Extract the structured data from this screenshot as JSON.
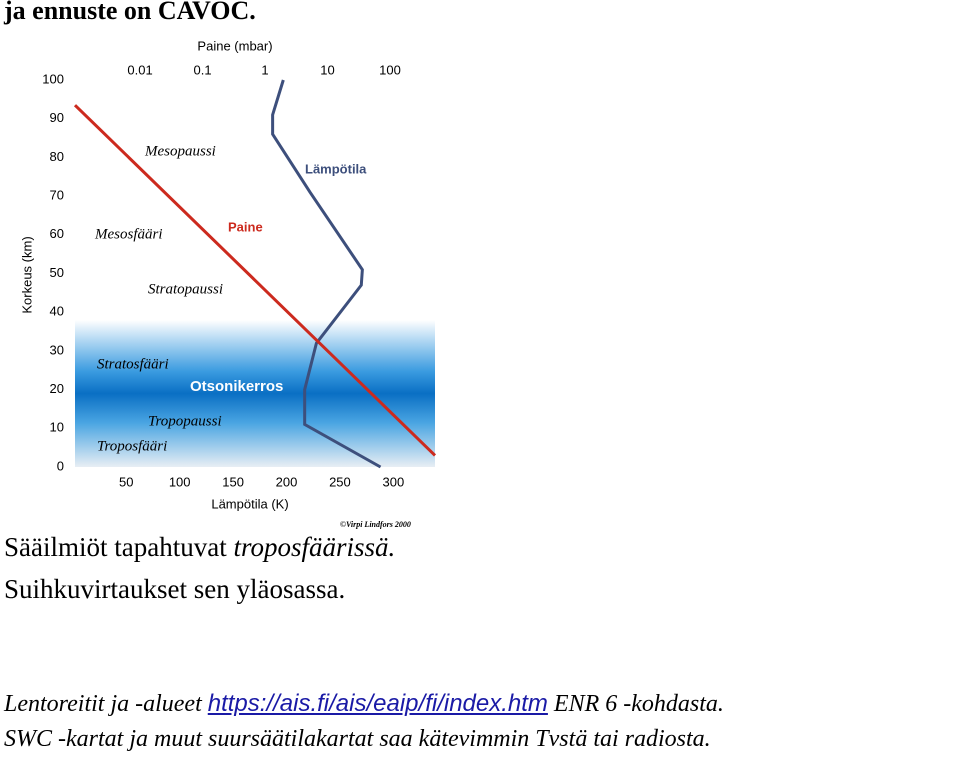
{
  "heading": "ja ennuste on CAVOC.",
  "chart_data": {
    "type": "line",
    "title": "Paine (mbar)",
    "x_label": "Lämpötila (K)",
    "y_label": "Korkeus (km)",
    "xlim": [
      2,
      339
    ],
    "xticks": [
      50,
      100,
      150,
      200,
      250,
      300
    ],
    "x2lim": [
      0.00091,
      525
    ],
    "x2ticks": [
      0.01,
      0.1,
      1,
      10,
      100
    ],
    "x2scale": "log",
    "ylim": [
      0,
      100
    ],
    "yticks": [
      0,
      10,
      20,
      30,
      40,
      50,
      60,
      70,
      80,
      90,
      100
    ],
    "series": [
      {
        "name": "Lämpötila",
        "color": "#3d4f7c",
        "x": [
          288,
          217,
          217,
          228,
          270,
          271,
          222,
          187,
          187,
          197
        ],
        "values": [
          0,
          11,
          20,
          32,
          47,
          51,
          71,
          86,
          91,
          100
        ]
      },
      {
        "name": "Paine",
        "color": "#cc2a1e",
        "axis": "x2",
        "x": [
          525,
          0.00091
        ],
        "values": [
          3,
          93.5
        ]
      }
    ],
    "annotations": [
      "Mesopaussi",
      "Mesosfääri",
      "Stratopaussi",
      "Stratosfääri",
      "Otsonikerros",
      "Tropopaussi",
      "Troposfääri",
      "©Virpi Lindfors 2000"
    ]
  },
  "paragraphs": [
    {
      "text": "Sääilmiöt tapahtuvat",
      "emphasis": "troposfäärissä."
    },
    {
      "text": "Suihkuvirtaukset sen yläosassa."
    }
  ],
  "notes": [
    {
      "before": "Lentoreitit  ja -alueet",
      "link": "https://ais.fi/ais/eaip/fi/index.htm",
      "after": "ENR 6 -kohdasta."
    },
    {
      "before": "SWC -kartat ja muut suursäätilakartat saa kätevimmin Tvstä tai radiosta."
    }
  ]
}
